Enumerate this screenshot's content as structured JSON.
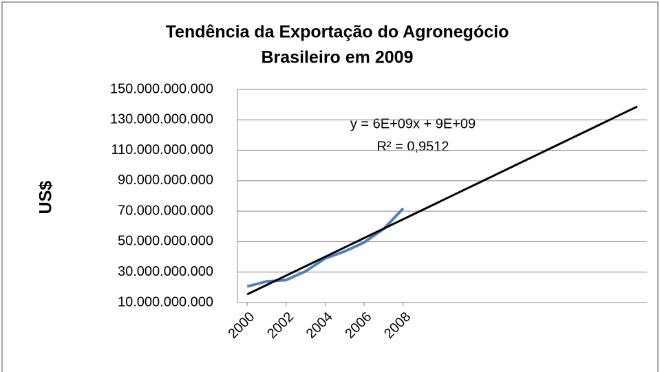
{
  "chart_data": {
    "type": "line",
    "title": [
      "Tendência da Exportação do Agronegócio",
      "Brasileiro em 2009"
    ],
    "y_label": "US$",
    "x": [
      2000,
      2001,
      2002,
      2003,
      2004,
      2005,
      2006,
      2007,
      2008
    ],
    "series": [
      {
        "color": "#4f81bd",
        "values": [
          20600000000,
          23900000000,
          24800000000,
          30600000000,
          39000000000,
          43600000000,
          49500000000,
          58400000000,
          71800000000
        ]
      }
    ],
    "trendline": {
      "color": "#000000",
      "x": [
        2000,
        2020
      ],
      "values": [
        15400000000,
        138700000000
      ]
    },
    "annotations": [
      "y = 6E+09x + 9E+09",
      "R² = 0,9512"
    ],
    "xlim": [
      1999.5,
      2020.5
    ],
    "xticks": [
      2000,
      2002,
      2004,
      2006,
      2008
    ],
    "ylim": [
      10000000000,
      150000000000
    ],
    "yticks": [
      {
        "value": 10000000000,
        "label": "10.000.000.000"
      },
      {
        "value": 30000000000,
        "label": "30.000.000.000"
      },
      {
        "value": 50000000000,
        "label": "50.000.000.000"
      },
      {
        "value": 70000000000,
        "label": "70.000.000.000"
      },
      {
        "value": 90000000000,
        "label": "90.000.000.000"
      },
      {
        "value": 110000000000,
        "label": "110.000.000.000"
      },
      {
        "value": 130000000000,
        "label": "130.000.000.000"
      },
      {
        "value": 150000000000,
        "label": "150.000.000.000"
      }
    ],
    "grid": true
  }
}
